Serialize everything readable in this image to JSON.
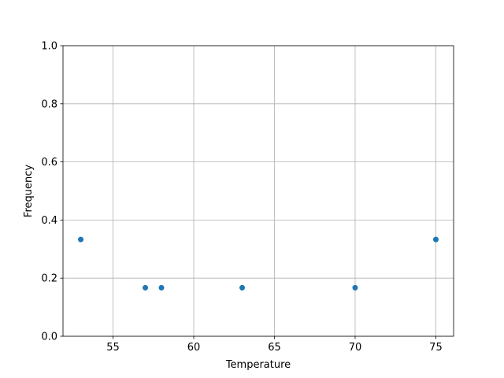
{
  "chart_data": {
    "type": "scatter",
    "title": "",
    "xlabel": "Temperature",
    "ylabel": "Frequency",
    "xlim": [
      51.9,
      76.1
    ],
    "ylim": [
      0,
      1
    ],
    "grid": true,
    "x_ticks": [
      "55",
      "60",
      "65",
      "70",
      "75"
    ],
    "y_ticks": [
      "0.0",
      "0.2",
      "0.4",
      "0.6",
      "0.8",
      "1.0"
    ],
    "points": [
      {
        "x": 53,
        "y": 0.333
      },
      {
        "x": 57,
        "y": 0.167
      },
      {
        "x": 58,
        "y": 0.167
      },
      {
        "x": 63,
        "y": 0.167
      },
      {
        "x": 70,
        "y": 0.167
      },
      {
        "x": 75,
        "y": 0.333
      }
    ],
    "marker_color": "#1f77b4"
  }
}
